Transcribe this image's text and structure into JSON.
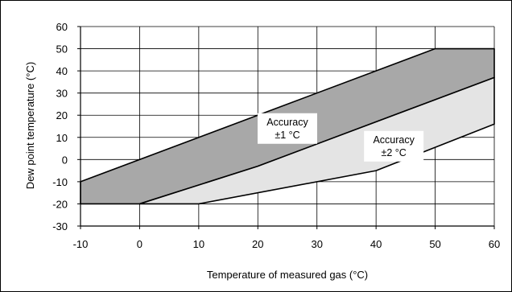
{
  "chart_data": {
    "type": "area",
    "title": "",
    "xlabel": "Temperature of measured gas  (°C)",
    "ylabel": "Dew point  temperature (°C)",
    "xlim": [
      -10,
      60
    ],
    "ylim": [
      -30,
      60
    ],
    "xticks": [
      "-10",
      "0",
      "10",
      "20",
      "30",
      "40",
      "50",
      "60"
    ],
    "yticks": [
      "-30",
      "-20",
      "-10",
      "0",
      "10",
      "20",
      "30",
      "40",
      "50",
      "60"
    ],
    "grid": true,
    "regions": [
      {
        "annotation": [
          "Accuracy",
          "±1 °C"
        ],
        "fill": "#a8a8a8",
        "upper": {
          "x": [
            -10,
            50,
            60
          ],
          "y": [
            -10,
            50,
            50
          ]
        },
        "lower": {
          "x": [
            -10,
            0,
            20,
            60
          ],
          "y": [
            -20,
            -20,
            -3,
            37
          ]
        }
      },
      {
        "annotation": [
          "Accuracy",
          "±2 °C"
        ],
        "fill": "#e4e4e4",
        "upper": {
          "x": [
            0,
            20,
            60
          ],
          "y": [
            -20,
            -3,
            37
          ]
        },
        "lower": {
          "x": [
            0,
            10,
            40,
            60
          ],
          "y": [
            -20,
            -20,
            -5,
            16
          ]
        }
      }
    ],
    "annotation_points": [
      [
        25,
        14
      ],
      [
        43,
        6
      ]
    ]
  }
}
